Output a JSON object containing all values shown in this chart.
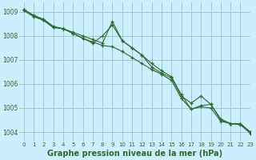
{
  "background_color": "#cceeff",
  "grid_color": "#99cccc",
  "line_color": "#2d6a2d",
  "marker_color": "#2d6a2d",
  "xlabel": "Graphe pression niveau de la mer (hPa)",
  "xlabel_fontsize": 7,
  "ylim": [
    1003.6,
    1009.4
  ],
  "xlim": [
    -0.5,
    23
  ],
  "yticks": [
    1004,
    1005,
    1006,
    1007,
    1008,
    1009
  ],
  "xticks": [
    0,
    1,
    2,
    3,
    4,
    5,
    6,
    7,
    8,
    9,
    10,
    11,
    12,
    13,
    14,
    15,
    16,
    17,
    18,
    19,
    20,
    21,
    22,
    23
  ],
  "series": [
    [
      1009.1,
      1008.85,
      1008.65,
      1008.35,
      1008.3,
      1008.1,
      1007.9,
      1007.75,
      1007.6,
      1007.55,
      1007.35,
      1007.1,
      1006.85,
      1006.6,
      1006.4,
      1006.15,
      1005.4,
      1004.95,
      1005.05,
      1005.0,
      1004.45,
      1004.35,
      1004.3,
      1003.95
    ],
    [
      1009.1,
      1008.85,
      1008.7,
      1008.4,
      1008.3,
      1008.15,
      1008.0,
      1007.85,
      1007.7,
      1008.6,
      1007.8,
      1007.5,
      1007.2,
      1006.85,
      1006.55,
      1006.3,
      1005.55,
      1004.95,
      1005.1,
      1005.15,
      1004.5,
      1004.35,
      1004.35,
      1004.0
    ],
    [
      1009.05,
      1008.8,
      1008.65,
      1008.35,
      1008.3,
      1008.1,
      1007.9,
      1007.7,
      1008.0,
      1008.45,
      1007.8,
      1007.5,
      1007.2,
      1006.7,
      1006.45,
      1006.25,
      1005.5,
      1005.2,
      1005.5,
      1005.15,
      1004.55,
      1004.35,
      1004.35,
      1004.0
    ]
  ]
}
